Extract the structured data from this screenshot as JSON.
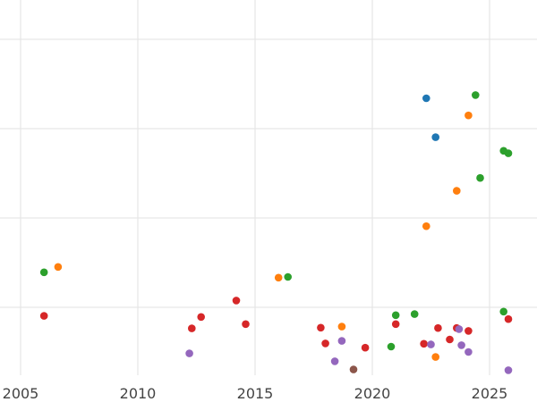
{
  "chart_data": {
    "type": "scatter",
    "title": "",
    "xlabel": "",
    "ylabel": "",
    "xlim": [
      2005.0,
      2027.0
    ],
    "ylim": [
      0,
      100
    ],
    "x_ticks": [
      2005,
      2010,
      2015,
      2020,
      2025
    ],
    "y_gridlines": [
      20,
      45,
      70,
      95
    ],
    "grid": true,
    "legend": "none",
    "colors": {
      "blue": "#1f77b4",
      "orange": "#ff7f0e",
      "green": "#2ca02c",
      "red": "#d62728",
      "purple": "#9467bd",
      "brown": "#8c564b"
    },
    "series": [
      {
        "color": "blue",
        "points": [
          [
            2022.3,
            78.5
          ],
          [
            2022.7,
            67.6
          ]
        ]
      },
      {
        "color": "orange",
        "points": [
          [
            2006.6,
            31.3
          ],
          [
            2016.0,
            28.3
          ],
          [
            2018.7,
            14.6
          ],
          [
            2022.3,
            42.7
          ],
          [
            2022.7,
            6.1
          ],
          [
            2023.6,
            52.6
          ],
          [
            2024.1,
            73.7
          ]
        ]
      },
      {
        "color": "green",
        "points": [
          [
            2006.0,
            29.8
          ],
          [
            2016.4,
            28.5
          ],
          [
            2020.8,
            9.0
          ],
          [
            2021.0,
            17.8
          ],
          [
            2021.8,
            18.1
          ],
          [
            2024.4,
            79.4
          ],
          [
            2024.6,
            56.2
          ],
          [
            2025.6,
            63.8
          ],
          [
            2025.6,
            18.8
          ],
          [
            2025.8,
            63.1
          ]
        ]
      },
      {
        "color": "red",
        "points": [
          [
            2006.0,
            17.6
          ],
          [
            2012.3,
            14.1
          ],
          [
            2012.7,
            17.3
          ],
          [
            2014.2,
            21.9
          ],
          [
            2014.6,
            15.3
          ],
          [
            2017.8,
            14.3
          ],
          [
            2018.0,
            9.9
          ],
          [
            2019.7,
            8.7
          ],
          [
            2021.0,
            15.3
          ],
          [
            2022.2,
            9.8
          ],
          [
            2022.8,
            14.2
          ],
          [
            2023.3,
            11.0
          ],
          [
            2023.6,
            14.2
          ],
          [
            2024.1,
            13.4
          ],
          [
            2025.8,
            16.7
          ]
        ]
      },
      {
        "color": "purple",
        "points": [
          [
            2012.2,
            7.1
          ],
          [
            2018.4,
            4.9
          ],
          [
            2018.7,
            10.6
          ],
          [
            2022.5,
            9.6
          ],
          [
            2023.7,
            13.9
          ],
          [
            2023.8,
            9.4
          ],
          [
            2024.1,
            7.5
          ],
          [
            2025.8,
            2.4
          ]
        ]
      },
      {
        "color": "brown",
        "points": [
          [
            2019.2,
            2.6
          ]
        ]
      }
    ]
  }
}
